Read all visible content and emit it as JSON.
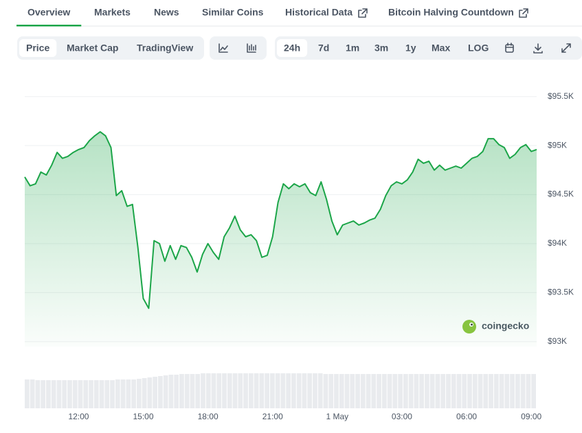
{
  "tabs": {
    "items": [
      "Overview",
      "Markets",
      "News",
      "Similar Coins",
      "Historical Data",
      "Bitcoin Halving Countdown"
    ],
    "active": 0
  },
  "views": {
    "items": [
      "Price",
      "Market Cap",
      "TradingView"
    ],
    "active": 0
  },
  "ranges": {
    "items": [
      "24h",
      "7d",
      "1m",
      "3m",
      "1y",
      "Max",
      "LOG"
    ],
    "active": 0
  },
  "chart_data": {
    "type": "line",
    "color": "#1ba548",
    "grid": true,
    "watermark": "coingecko",
    "categories": [
      null,
      null,
      null,
      null,
      null,
      null,
      null,
      null,
      null,
      null,
      "12:00",
      null,
      null,
      null,
      null,
      null,
      null,
      null,
      null,
      null,
      null,
      null,
      "15:00",
      null,
      null,
      null,
      null,
      null,
      null,
      null,
      null,
      null,
      null,
      null,
      "18:00",
      null,
      null,
      null,
      null,
      null,
      null,
      null,
      null,
      null,
      null,
      null,
      "21:00",
      null,
      null,
      null,
      null,
      null,
      null,
      null,
      null,
      null,
      null,
      null,
      "1 May",
      null,
      null,
      null,
      null,
      null,
      null,
      null,
      null,
      null,
      null,
      null,
      "03:00",
      null,
      null,
      null,
      null,
      null,
      null,
      null,
      null,
      null,
      null,
      null,
      "06:00",
      null,
      null,
      null,
      null,
      null,
      null,
      null,
      null,
      null,
      null,
      null,
      "09:00",
      null
    ],
    "values": [
      94680,
      94590,
      94610,
      94730,
      94700,
      94800,
      94930,
      94870,
      94890,
      94930,
      94960,
      94980,
      95050,
      95100,
      95140,
      95100,
      94980,
      94490,
      94540,
      94380,
      94400,
      93960,
      93440,
      93340,
      94030,
      94000,
      93820,
      93980,
      93840,
      93980,
      93960,
      93860,
      93710,
      93890,
      94000,
      93910,
      93840,
      94070,
      94160,
      94280,
      94140,
      94070,
      94090,
      94030,
      93860,
      93880,
      94070,
      94420,
      94610,
      94560,
      94610,
      94580,
      94610,
      94520,
      94490,
      94630,
      94450,
      94230,
      94090,
      94190,
      94210,
      94230,
      94190,
      94210,
      94240,
      94260,
      94350,
      94490,
      94590,
      94630,
      94610,
      94650,
      94730,
      94860,
      94820,
      94840,
      94750,
      94800,
      94750,
      94770,
      94790,
      94770,
      94820,
      94870,
      94890,
      94940,
      95070,
      95070,
      95010,
      94980,
      94870,
      94910,
      94980,
      95010,
      94940,
      94960
    ],
    "volume": [
      42,
      42,
      41,
      41,
      41,
      41,
      41,
      41,
      41,
      41,
      41,
      41,
      41,
      41,
      41,
      41,
      41,
      42,
      42,
      42,
      42,
      43,
      44,
      45,
      46,
      47,
      48,
      49,
      49,
      50,
      50,
      50,
      50,
      51,
      51,
      51,
      51,
      51,
      51,
      51,
      51,
      51,
      51,
      51,
      51,
      51,
      51,
      51,
      51,
      51,
      51,
      51,
      51,
      51,
      51,
      51,
      50,
      50,
      50,
      50,
      50,
      50,
      50,
      50,
      50,
      50,
      50,
      50,
      50,
      50,
      50,
      50,
      50,
      50,
      50,
      50,
      50,
      50,
      50,
      50,
      50,
      50,
      50,
      50,
      50,
      50,
      50,
      50,
      50,
      50,
      50,
      50,
      50,
      50,
      50,
      50
    ],
    "ylim": [
      92950,
      95750
    ],
    "yticks": [
      {
        "value": 93000,
        "label": "$93K"
      },
      {
        "value": 93500,
        "label": "$93.5K"
      },
      {
        "value": 94000,
        "label": "$94K"
      },
      {
        "value": 94500,
        "label": "$94.5K"
      },
      {
        "value": 95000,
        "label": "$95K"
      },
      {
        "value": 95500,
        "label": "$95.5K"
      }
    ]
  }
}
